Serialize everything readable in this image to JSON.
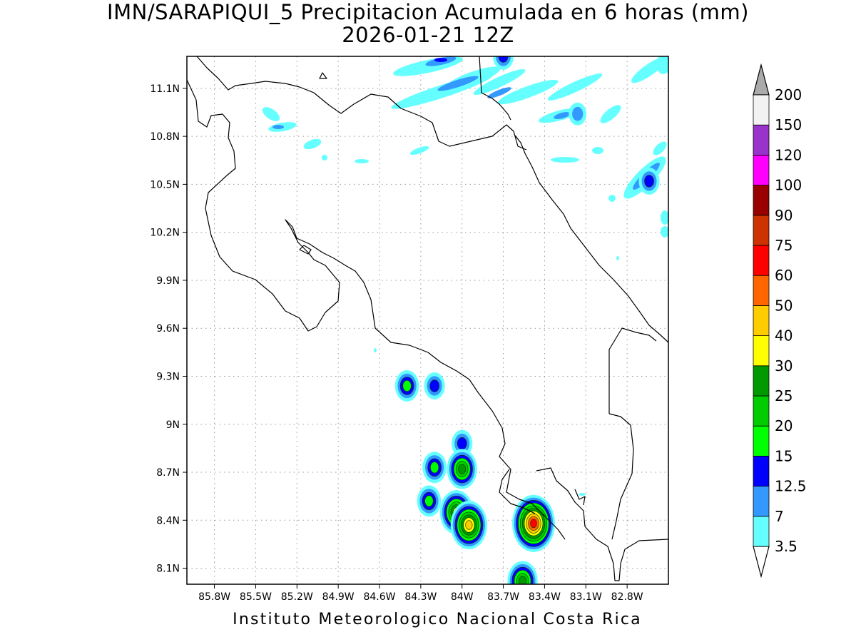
{
  "title": "IMN/SARAPIQUI_5 Precipitacion Acumulada en 6 horas (mm)",
  "subtitle": "2026-01-21 12Z",
  "footer": "Instituto Meteorologico Nacional Costa Rica",
  "map": {
    "lon_range": [
      -86.0,
      -82.5
    ],
    "lat_range": [
      8.0,
      11.3
    ],
    "grid": "dotted",
    "lat_ticks": [
      {
        "value": 11.1,
        "label": "11.1N"
      },
      {
        "value": 10.8,
        "label": "10.8N"
      },
      {
        "value": 10.5,
        "label": "10.5N"
      },
      {
        "value": 10.2,
        "label": "10.2N"
      },
      {
        "value": 9.9,
        "label": "9.9N"
      },
      {
        "value": 9.6,
        "label": "9.6N"
      },
      {
        "value": 9.3,
        "label": "9.3N"
      },
      {
        "value": 9.0,
        "label": "9N"
      },
      {
        "value": 8.7,
        "label": "8.7N"
      },
      {
        "value": 8.4,
        "label": "8.4N"
      },
      {
        "value": 8.1,
        "label": "8.1N"
      }
    ],
    "lon_ticks": [
      {
        "value": -85.8,
        "label": "85.8W"
      },
      {
        "value": -85.5,
        "label": "85.5W"
      },
      {
        "value": -85.2,
        "label": "85.2W"
      },
      {
        "value": -84.9,
        "label": "84.9W"
      },
      {
        "value": -84.6,
        "label": "84.6W"
      },
      {
        "value": -84.3,
        "label": "84.3W"
      },
      {
        "value": -84.0,
        "label": "84W"
      },
      {
        "value": -83.7,
        "label": "83.7W"
      },
      {
        "value": -83.4,
        "label": "83.4W"
      },
      {
        "value": -83.1,
        "label": "83.1W"
      },
      {
        "value": -82.8,
        "label": "82.8W"
      }
    ],
    "precip_cells": [
      {
        "lon": -84.4,
        "lat": 9.24,
        "mm": 15
      },
      {
        "lon": -84.2,
        "lat": 9.24,
        "mm": 12.5
      },
      {
        "lon": -84.0,
        "lat": 8.88,
        "mm": 12.5
      },
      {
        "lon": -84.2,
        "lat": 8.73,
        "mm": 15
      },
      {
        "lon": -84.0,
        "lat": 8.72,
        "mm": 25
      },
      {
        "lon": -84.24,
        "lat": 8.52,
        "mm": 15
      },
      {
        "lon": -84.04,
        "lat": 8.45,
        "mm": 30
      },
      {
        "lon": -83.95,
        "lat": 8.37,
        "mm": 40
      },
      {
        "lon": -83.48,
        "lat": 8.38,
        "mm": 60
      },
      {
        "lon": -83.56,
        "lat": 8.02,
        "mm": 25
      },
      {
        "lon": -83.7,
        "lat": 11.3,
        "mm": 12.5
      },
      {
        "lon": -82.64,
        "lat": 10.52,
        "mm": 12.5
      },
      {
        "lon": -83.16,
        "lat": 10.94,
        "mm": 7
      }
    ]
  },
  "colorbar": {
    "labels": [
      "3.5",
      "7",
      "12.5",
      "15",
      "20",
      "25",
      "30",
      "40",
      "50",
      "60",
      "75",
      "90",
      "100",
      "120",
      "150",
      "200"
    ],
    "colors": [
      "#66ffff",
      "#3399ff",
      "#0000ff",
      "#00ff00",
      "#00cc00",
      "#009900",
      "#ffff00",
      "#ffcc00",
      "#ff6600",
      "#ff0000",
      "#cc3300",
      "#990000",
      "#ff00ff",
      "#9933cc",
      "#f2f2f2",
      "#aaaaaa"
    ]
  }
}
